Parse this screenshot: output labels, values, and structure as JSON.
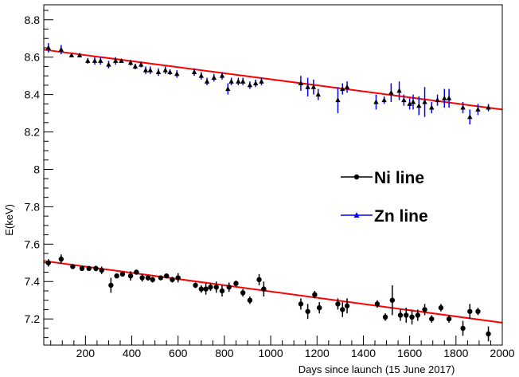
{
  "chart_data": {
    "type": "scatter",
    "xlabel": "Days since launch (15 June 2017)",
    "ylabel": "E(keV)",
    "xlim": [
      20,
      2000
    ],
    "ylim": [
      7.06,
      8.88
    ],
    "x_ticks": [
      200,
      400,
      600,
      800,
      1000,
      1200,
      1400,
      1600,
      1800,
      2000
    ],
    "x_tick_labels": [
      "200",
      "400",
      "600",
      "800",
      "1000",
      "1200",
      "1400",
      "1600",
      "1800",
      "2000"
    ],
    "y_ticks": [
      7.2,
      7.4,
      7.6,
      7.8,
      8.0,
      8.2,
      8.4,
      8.6,
      8.8
    ],
    "y_tick_labels": [
      "7.2",
      "7.4",
      "7.6",
      "7.8",
      "8",
      "8.2",
      "8.4",
      "8.6",
      "8.8"
    ],
    "legend_position": "center-right",
    "grid": false,
    "fit_color": "#ff0000",
    "series": [
      {
        "name": "Ni line",
        "marker": "circle",
        "color": "#000000",
        "error_bar_color": "#000000",
        "fit": {
          "x": [
            20,
            2000
          ],
          "y": [
            7.51,
            7.18
          ]
        },
        "points": [
          {
            "x": 40,
            "y": 7.5,
            "err": 0.02
          },
          {
            "x": 95,
            "y": 7.52,
            "err": 0.025
          },
          {
            "x": 145,
            "y": 7.48,
            "err": 0.01
          },
          {
            "x": 185,
            "y": 7.47,
            "err": 0.01
          },
          {
            "x": 215,
            "y": 7.47,
            "err": 0.01
          },
          {
            "x": 245,
            "y": 7.47,
            "err": 0.015
          },
          {
            "x": 270,
            "y": 7.46,
            "err": 0.02
          },
          {
            "x": 310,
            "y": 7.38,
            "err": 0.04
          },
          {
            "x": 335,
            "y": 7.43,
            "err": 0.01
          },
          {
            "x": 360,
            "y": 7.44,
            "err": 0.01
          },
          {
            "x": 395,
            "y": 7.43,
            "err": 0.025
          },
          {
            "x": 420,
            "y": 7.45,
            "err": 0.01
          },
          {
            "x": 445,
            "y": 7.42,
            "err": 0.02
          },
          {
            "x": 470,
            "y": 7.42,
            "err": 0.015
          },
          {
            "x": 490,
            "y": 7.41,
            "err": 0.015
          },
          {
            "x": 525,
            "y": 7.42,
            "err": 0.01
          },
          {
            "x": 550,
            "y": 7.43,
            "err": 0.01
          },
          {
            "x": 575,
            "y": 7.41,
            "err": 0.015
          },
          {
            "x": 600,
            "y": 7.42,
            "err": 0.025
          },
          {
            "x": 675,
            "y": 7.38,
            "err": 0.015
          },
          {
            "x": 700,
            "y": 7.36,
            "err": 0.02
          },
          {
            "x": 720,
            "y": 7.36,
            "err": 0.03
          },
          {
            "x": 740,
            "y": 7.37,
            "err": 0.02
          },
          {
            "x": 765,
            "y": 7.37,
            "err": 0.03
          },
          {
            "x": 790,
            "y": 7.35,
            "err": 0.03
          },
          {
            "x": 820,
            "y": 7.37,
            "err": 0.025
          },
          {
            "x": 850,
            "y": 7.39,
            "err": 0.015
          },
          {
            "x": 880,
            "y": 7.34,
            "err": 0.02
          },
          {
            "x": 910,
            "y": 7.3,
            "err": 0.02
          },
          {
            "x": 950,
            "y": 7.41,
            "err": 0.03
          },
          {
            "x": 970,
            "y": 7.36,
            "err": 0.04
          },
          {
            "x": 1130,
            "y": 7.28,
            "err": 0.03
          },
          {
            "x": 1160,
            "y": 7.24,
            "err": 0.04
          },
          {
            "x": 1190,
            "y": 7.33,
            "err": 0.02
          },
          {
            "x": 1210,
            "y": 7.26,
            "err": 0.03
          },
          {
            "x": 1290,
            "y": 7.28,
            "err": 0.03
          },
          {
            "x": 1310,
            "y": 7.25,
            "err": 0.04
          },
          {
            "x": 1330,
            "y": 7.27,
            "err": 0.04
          },
          {
            "x": 1460,
            "y": 7.28,
            "err": 0.02
          },
          {
            "x": 1495,
            "y": 7.21,
            "err": 0.02
          },
          {
            "x": 1525,
            "y": 7.3,
            "err": 0.08
          },
          {
            "x": 1560,
            "y": 7.22,
            "err": 0.03
          },
          {
            "x": 1585,
            "y": 7.22,
            "err": 0.04
          },
          {
            "x": 1610,
            "y": 7.21,
            "err": 0.04
          },
          {
            "x": 1635,
            "y": 7.22,
            "err": 0.03
          },
          {
            "x": 1665,
            "y": 7.25,
            "err": 0.03
          },
          {
            "x": 1695,
            "y": 7.2,
            "err": 0.02
          },
          {
            "x": 1735,
            "y": 7.26,
            "err": 0.02
          },
          {
            "x": 1770,
            "y": 7.2,
            "err": 0.02
          },
          {
            "x": 1830,
            "y": 7.15,
            "err": 0.04
          },
          {
            "x": 1860,
            "y": 7.24,
            "err": 0.04
          },
          {
            "x": 1895,
            "y": 7.24,
            "err": 0.02
          },
          {
            "x": 1940,
            "y": 7.12,
            "err": 0.04
          }
        ]
      },
      {
        "name": "Zn line",
        "marker": "triangle",
        "color": "#000000",
        "error_bar_color": "#0000ff",
        "fit": {
          "x": [
            20,
            2000
          ],
          "y": [
            8.64,
            8.32
          ]
        },
        "points": [
          {
            "x": 40,
            "y": 8.65,
            "err": 0.025
          },
          {
            "x": 95,
            "y": 8.64,
            "err": 0.025
          },
          {
            "x": 140,
            "y": 8.61,
            "err": 0.01
          },
          {
            "x": 175,
            "y": 8.61,
            "err": 0.01
          },
          {
            "x": 210,
            "y": 8.58,
            "err": 0.015
          },
          {
            "x": 240,
            "y": 8.58,
            "err": 0.02
          },
          {
            "x": 265,
            "y": 8.58,
            "err": 0.02
          },
          {
            "x": 300,
            "y": 8.56,
            "err": 0.02
          },
          {
            "x": 330,
            "y": 8.58,
            "err": 0.02
          },
          {
            "x": 355,
            "y": 8.58,
            "err": 0.01
          },
          {
            "x": 395,
            "y": 8.57,
            "err": 0.015
          },
          {
            "x": 415,
            "y": 8.55,
            "err": 0.015
          },
          {
            "x": 440,
            "y": 8.56,
            "err": 0.015
          },
          {
            "x": 460,
            "y": 8.53,
            "err": 0.02
          },
          {
            "x": 480,
            "y": 8.53,
            "err": 0.02
          },
          {
            "x": 515,
            "y": 8.52,
            "err": 0.02
          },
          {
            "x": 545,
            "y": 8.53,
            "err": 0.02
          },
          {
            "x": 565,
            "y": 8.52,
            "err": 0.015
          },
          {
            "x": 595,
            "y": 8.51,
            "err": 0.02
          },
          {
            "x": 670,
            "y": 8.52,
            "err": 0.02
          },
          {
            "x": 700,
            "y": 8.5,
            "err": 0.02
          },
          {
            "x": 725,
            "y": 8.47,
            "err": 0.02
          },
          {
            "x": 755,
            "y": 8.49,
            "err": 0.02
          },
          {
            "x": 790,
            "y": 8.5,
            "err": 0.02
          },
          {
            "x": 815,
            "y": 8.43,
            "err": 0.03
          },
          {
            "x": 830,
            "y": 8.47,
            "err": 0.02
          },
          {
            "x": 860,
            "y": 8.47,
            "err": 0.02
          },
          {
            "x": 880,
            "y": 8.47,
            "err": 0.02
          },
          {
            "x": 910,
            "y": 8.45,
            "err": 0.02
          },
          {
            "x": 935,
            "y": 8.46,
            "err": 0.02
          },
          {
            "x": 960,
            "y": 8.47,
            "err": 0.02
          },
          {
            "x": 1130,
            "y": 8.46,
            "err": 0.04
          },
          {
            "x": 1160,
            "y": 8.44,
            "err": 0.05
          },
          {
            "x": 1185,
            "y": 8.44,
            "err": 0.04
          },
          {
            "x": 1205,
            "y": 8.4,
            "err": 0.03
          },
          {
            "x": 1290,
            "y": 8.37,
            "err": 0.07
          },
          {
            "x": 1310,
            "y": 8.43,
            "err": 0.03
          },
          {
            "x": 1330,
            "y": 8.44,
            "err": 0.03
          },
          {
            "x": 1455,
            "y": 8.36,
            "err": 0.04
          },
          {
            "x": 1490,
            "y": 8.37,
            "err": 0.02
          },
          {
            "x": 1520,
            "y": 8.41,
            "err": 0.05
          },
          {
            "x": 1555,
            "y": 8.42,
            "err": 0.05
          },
          {
            "x": 1575,
            "y": 8.37,
            "err": 0.03
          },
          {
            "x": 1600,
            "y": 8.35,
            "err": 0.03
          },
          {
            "x": 1615,
            "y": 8.36,
            "err": 0.04
          },
          {
            "x": 1640,
            "y": 8.34,
            "err": 0.05
          },
          {
            "x": 1665,
            "y": 8.36,
            "err": 0.08
          },
          {
            "x": 1695,
            "y": 8.33,
            "err": 0.03
          },
          {
            "x": 1720,
            "y": 8.37,
            "err": 0.03
          },
          {
            "x": 1750,
            "y": 8.38,
            "err": 0.05
          },
          {
            "x": 1770,
            "y": 8.38,
            "err": 0.05
          },
          {
            "x": 1830,
            "y": 8.33,
            "err": 0.03
          },
          {
            "x": 1860,
            "y": 8.28,
            "err": 0.04
          },
          {
            "x": 1895,
            "y": 8.32,
            "err": 0.03
          },
          {
            "x": 1940,
            "y": 8.33,
            "err": 0.02
          }
        ]
      }
    ]
  }
}
